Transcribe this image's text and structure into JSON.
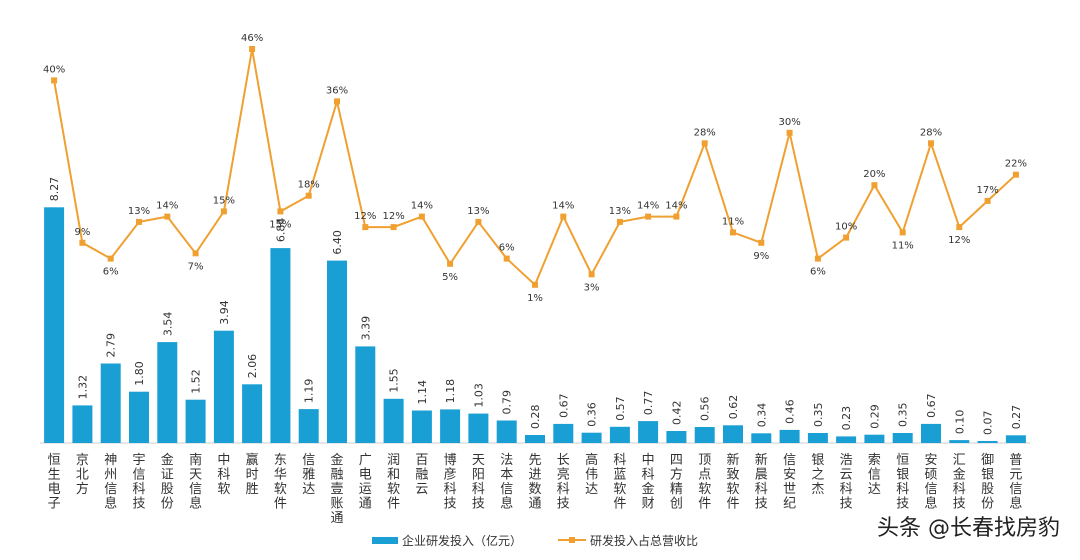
{
  "chart_data": {
    "type": "bar+line",
    "categories": [
      "恒生电子",
      "京北方",
      "神州信息",
      "宇信科技",
      "金证股份",
      "南天信息",
      "中科软",
      "赢时胜",
      "东华软件",
      "信雅达",
      "金融壹账通",
      "广电运通",
      "润和软件",
      "百融云",
      "博彦科技",
      "天阳科技",
      "法本信息",
      "先进数通",
      "长亮科技",
      "高伟达",
      "科蓝软件",
      "中科金财",
      "四方精创",
      "顶点软件",
      "新致软件",
      "新晨科技",
      "信安世纪",
      "银之杰",
      "浩云科技",
      "索信达",
      "恒银科技",
      "安硕信息",
      "汇金科技",
      "御银股份",
      "普元信息"
    ],
    "series": [
      {
        "name": "企业研发投入（亿元）",
        "kind": "bar",
        "color": "#1a9fd4",
        "values": [
          8.27,
          1.32,
          2.79,
          1.8,
          3.54,
          1.52,
          3.94,
          2.06,
          6.84,
          1.19,
          6.4,
          3.39,
          1.55,
          1.14,
          1.18,
          1.03,
          0.79,
          0.28,
          0.67,
          0.36,
          0.57,
          0.77,
          0.42,
          0.56,
          0.62,
          0.34,
          0.46,
          0.35,
          0.23,
          0.29,
          0.35,
          0.67,
          0.1,
          0.07,
          0.27
        ],
        "labels": [
          "8.27",
          "1.32",
          "2.79",
          "1.80",
          "3.54",
          "1.52",
          "3.94",
          "2.06",
          "6.84",
          "1.19",
          "6.40",
          "3.39",
          "1.55",
          "1.14",
          "1.18",
          "1.03",
          "0.79",
          "0.28",
          "0.67",
          "0.36",
          "0.57",
          "0.77",
          "0.42",
          "0.56",
          "0.62",
          "0.34",
          "0.46",
          "0.35",
          "0.23",
          "0.29",
          "0.35",
          "0.67",
          "0.10",
          "0.07",
          "0.27"
        ]
      },
      {
        "name": "研发投入占总营收比",
        "kind": "line",
        "color": "#f0a030",
        "values": [
          40,
          9,
          6,
          13,
          14,
          7,
          15,
          46,
          15,
          18,
          36,
          12,
          12,
          14,
          5,
          13,
          6,
          1,
          14,
          3,
          13,
          14,
          14,
          28,
          11,
          9,
          30,
          6,
          10,
          20,
          11,
          28,
          12,
          17,
          22
        ],
        "labels": [
          "40%",
          "9%",
          "6%",
          "13%",
          "14%",
          "7%",
          "15%",
          "46%",
          "15%",
          "18%",
          "36%",
          "12%",
          "12%",
          "14%",
          "5%",
          "13%",
          "6%",
          "1%",
          "14%",
          "3%",
          "13%",
          "14%",
          "14%",
          "28%",
          "11%",
          "9%",
          "30%",
          "6%",
          "10%",
          "20%",
          "11%",
          "28%",
          "12%",
          "17%",
          "22%"
        ]
      }
    ],
    "legend": [
      "企业研发投入（亿元）",
      "研发投入占总营收比"
    ],
    "legend_position": "bottom-center",
    "title": "",
    "xlabel": "",
    "ylabel": ""
  },
  "watermark": "头条 @长春找房豹"
}
